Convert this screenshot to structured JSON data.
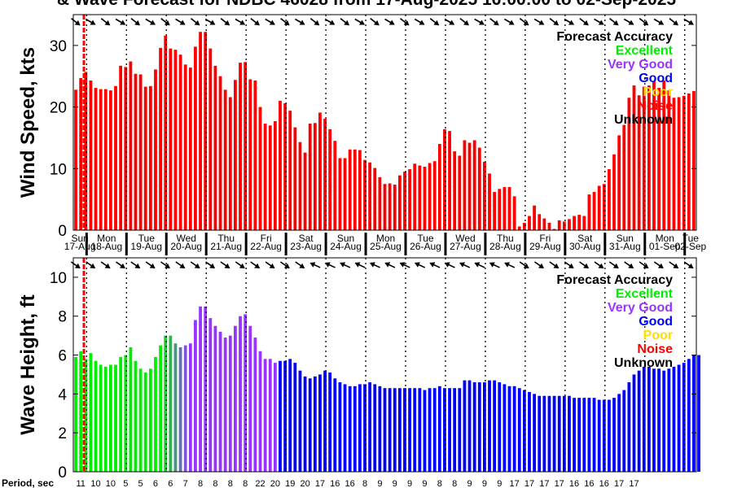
{
  "title": "& Wave Forecast for NDBC 46028 from 17-Aug-2025 16:00:00 to 02-Sep-2025",
  "legend": {
    "title": "Forecast Accuracy",
    "items": [
      {
        "label": "Excellent",
        "color": "#00ee00"
      },
      {
        "label": "Very Good",
        "color": "#9933ff"
      },
      {
        "label": "Good",
        "color": "#0000ff"
      },
      {
        "label": "Poor",
        "color": "#ffdd00"
      },
      {
        "label": "Noise",
        "color": "#ff0000"
      },
      {
        "label": "Unknown",
        "color": "#000000"
      }
    ]
  },
  "period_label": "Period, sec",
  "period_ticks": [
    "11",
    "10",
    "10",
    "5",
    "5",
    "6",
    "6",
    "7",
    "8",
    "8",
    "8",
    "8",
    "22",
    "20",
    "19",
    "20",
    "17",
    "16",
    "16",
    "8",
    "9",
    "9",
    "9",
    "9",
    "8",
    "8",
    "9",
    "9",
    "9",
    "17",
    "17",
    "17",
    "17",
    "16",
    "16",
    "16",
    "17",
    "17"
  ],
  "chart_data": [
    {
      "type": "bar",
      "title": "& Wave Forecast for NDBC 46028 from 17-Aug-2025 16:00:00 to 02-Sep-2025",
      "ylabel": "Wind Speed, kts",
      "ylim": [
        0,
        35
      ],
      "yticks": [
        0,
        10,
        20,
        30
      ],
      "x_start": "17-Aug-2025 16:00",
      "x_step_hours": 3,
      "day_labels": [
        {
          "day": "Sun",
          "date": "17-Aug"
        },
        {
          "day": "Mon",
          "date": "18-Aug"
        },
        {
          "day": "Tue",
          "date": "19-Aug"
        },
        {
          "day": "Wed",
          "date": "20-Aug"
        },
        {
          "day": "Thu",
          "date": "21-Aug"
        },
        {
          "day": "Fri",
          "date": "22-Aug"
        },
        {
          "day": "Sat",
          "date": "23-Aug"
        },
        {
          "day": "Sun",
          "date": "24-Aug"
        },
        {
          "day": "Mon",
          "date": "25-Aug"
        },
        {
          "day": "Tue",
          "date": "26-Aug"
        },
        {
          "day": "Wed",
          "date": "27-Aug"
        },
        {
          "day": "Thu",
          "date": "28-Aug"
        },
        {
          "day": "Fri",
          "date": "29-Aug"
        },
        {
          "day": "Sat",
          "date": "30-Aug"
        },
        {
          "day": "Sun",
          "date": "31-Aug"
        },
        {
          "day": "Mon",
          "date": "01-Sep"
        },
        {
          "day": "Tue",
          "date": "02-Sep"
        }
      ],
      "values": [
        22.8,
        24.7,
        25.7,
        24.3,
        23.1,
        22.9,
        22.9,
        22.7,
        23.4,
        26.7,
        26.5,
        27.4,
        25.4,
        25.3,
        23.3,
        23.4,
        26.1,
        29.6,
        31.6,
        29.5,
        29.3,
        28.5,
        26.9,
        26.4,
        29.8,
        32.2,
        32.2,
        29.5,
        26.7,
        25.0,
        22.8,
        21.6,
        24.4,
        27.2,
        27.3,
        24.5,
        24.3,
        20.0,
        17.3,
        17.0,
        17.7,
        21.0,
        20.6,
        19.4,
        16.7,
        14.3,
        12.6,
        17.3,
        17.4,
        19.1,
        18.1,
        16.4,
        14.5,
        11.7,
        11.7,
        13.1,
        13.1,
        13.0,
        11.4,
        11.0,
        10.1,
        8.6,
        7.5,
        7.6,
        7.4,
        8.9,
        9.5,
        9.9,
        10.8,
        10.5,
        10.3,
        10.9,
        11.2,
        14.0,
        16.4,
        16.1,
        12.8,
        12.1,
        14.6,
        14.2,
        14.6,
        13.4,
        11.1,
        9.2,
        6.2,
        6.7,
        7.0,
        7.0,
        5.5,
        0.6,
        1.2,
        2.3,
        4.0,
        2.6,
        1.9,
        1.2,
        0.2,
        1.6,
        1.4,
        1.8,
        2.3,
        2.5,
        2.3,
        5.8,
        6.2,
        7.2,
        7.5,
        9.9,
        12.3,
        15.4,
        17.1,
        21.5,
        23.5,
        21.9,
        23.3,
        23.5,
        24.2,
        23.1,
        24.3,
        22.7,
        21.5,
        21.6,
        21.8,
        22.2,
        22.6
      ],
      "colors": [
        "#ff0000"
      ],
      "direction_arrows": true
    },
    {
      "type": "bar",
      "ylabel": "Wave Height, ft",
      "ylim": [
        0,
        11
      ],
      "yticks": [
        0,
        2,
        4,
        6,
        8,
        10
      ],
      "x_start": "17-Aug-2025 16:00",
      "x_step_hours": 3,
      "values": [
        5.9,
        6.2,
        5.8,
        6.1,
        5.7,
        5.5,
        5.4,
        5.5,
        5.5,
        5.9,
        6.0,
        6.4,
        5.7,
        5.3,
        5.1,
        5.3,
        5.9,
        6.5,
        7.0,
        7.0,
        6.6,
        6.4,
        6.5,
        6.6,
        7.8,
        8.5,
        8.5,
        7.9,
        7.5,
        7.2,
        6.9,
        7.0,
        7.5,
        8.0,
        8.1,
        7.5,
        6.9,
        6.2,
        5.8,
        5.8,
        5.6,
        5.7,
        5.7,
        5.8,
        5.6,
        5.2,
        4.9,
        4.8,
        4.9,
        5.0,
        5.2,
        5.1,
        4.8,
        4.6,
        4.5,
        4.4,
        4.4,
        4.5,
        4.5,
        4.6,
        4.5,
        4.4,
        4.3,
        4.3,
        4.3,
        4.3,
        4.3,
        4.3,
        4.3,
        4.3,
        4.2,
        4.3,
        4.3,
        4.4,
        4.3,
        4.3,
        4.3,
        4.3,
        4.7,
        4.7,
        4.6,
        4.6,
        4.6,
        4.7,
        4.7,
        4.6,
        4.5,
        4.4,
        4.4,
        4.3,
        4.2,
        4.1,
        4.0,
        3.9,
        3.9,
        3.9,
        3.9,
        3.9,
        3.9,
        3.9,
        3.8,
        3.8,
        3.8,
        3.8,
        3.8,
        3.7,
        3.7,
        3.7,
        3.8,
        4.0,
        4.2,
        4.6,
        5.0,
        5.2,
        5.4,
        5.4,
        5.3,
        5.3,
        5.2,
        5.3,
        5.4,
        5.5,
        5.6,
        5.8,
        6.0,
        6.0
      ],
      "quality_categories": [
        "Excellent",
        "Very Good",
        "Good"
      ],
      "quality_segments": [
        {
          "from_index": 0,
          "to_index": 17,
          "quality": "Excellent"
        },
        {
          "from_index": 18,
          "to_index": 23,
          "quality": "Excellent-Very Good transition"
        },
        {
          "from_index": 24,
          "to_index": 40,
          "quality": "Very Good"
        },
        {
          "from_index": 41,
          "to_index": 125,
          "quality": "Good"
        }
      ],
      "direction_arrows": true
    }
  ]
}
